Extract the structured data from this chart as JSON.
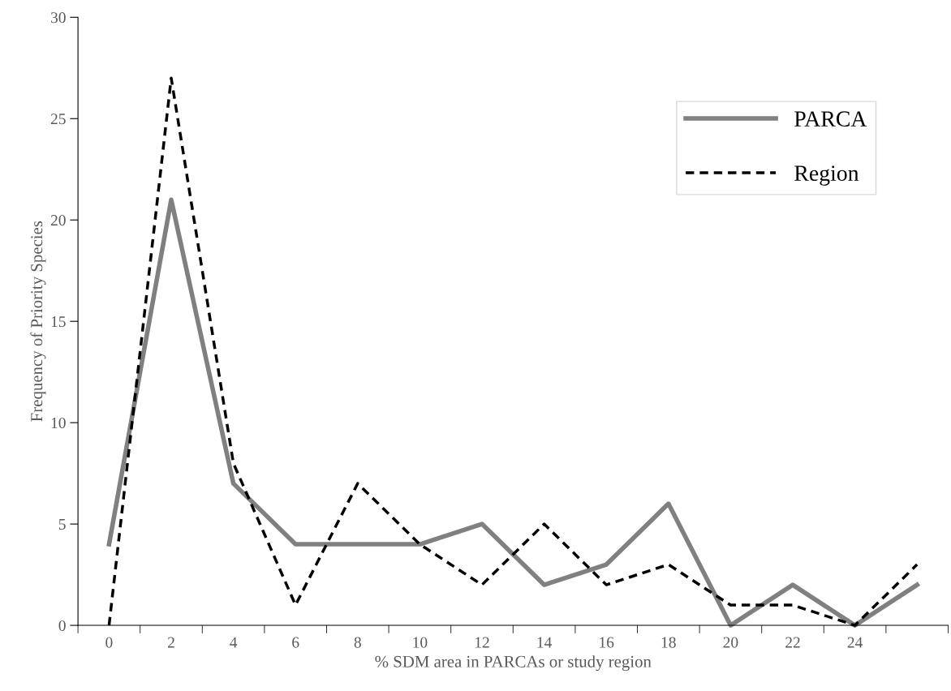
{
  "chart_data": {
    "type": "line",
    "xlabel": "% SDM area in PARCAs or study region",
    "ylabel": "Frequency of Priority Species",
    "categories": [
      "0",
      "2",
      "4",
      "6",
      "8",
      "10",
      "12",
      "14",
      "16",
      "18",
      "20",
      "22",
      "24",
      null
    ],
    "series": [
      {
        "name": "PARCA",
        "color": "#808080",
        "line_style": "solid",
        "values": [
          4,
          21,
          7,
          4,
          4,
          4,
          5,
          2,
          3,
          6,
          0,
          2,
          0,
          2
        ]
      },
      {
        "name": "Region",
        "color": "#000000",
        "line_style": "dashed",
        "values": [
          0,
          27,
          8,
          1,
          7,
          4,
          2,
          5,
          2,
          3,
          1,
          1,
          0,
          3
        ]
      }
    ],
    "ylim": [
      0,
      30
    ],
    "yticks": [
      0,
      5,
      10,
      15,
      20,
      25,
      30
    ],
    "grid": false,
    "legend": "top right",
    "marker": "none"
  }
}
